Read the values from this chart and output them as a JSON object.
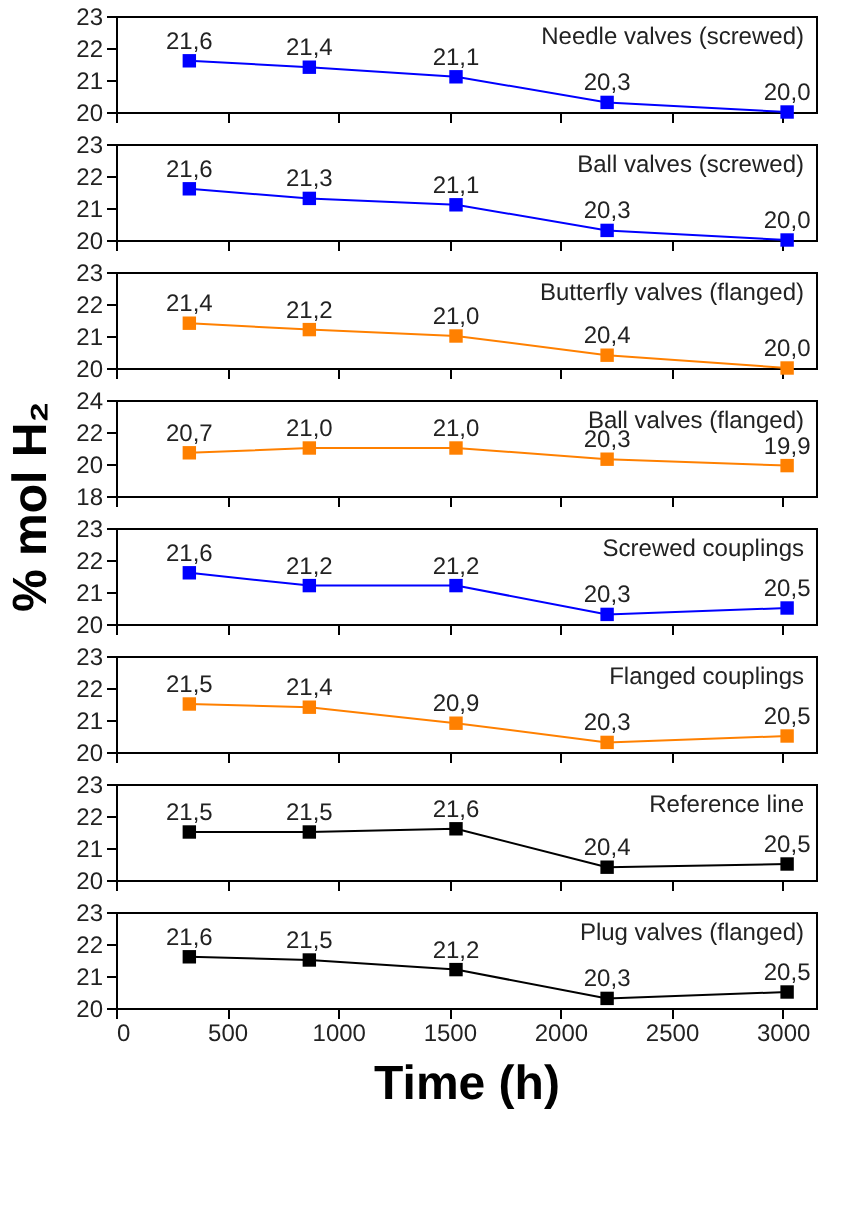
{
  "chart_data": [
    {
      "type": "line",
      "x": [
        330,
        870,
        1530,
        2210,
        3020
      ],
      "xlim": [
        0,
        3150
      ],
      "xticks": [
        0,
        500,
        1000,
        1500,
        2000,
        2500,
        3000
      ],
      "ylim": [
        20,
        23
      ],
      "yticks": [
        20,
        21,
        22,
        23
      ],
      "marker": "square",
      "line_style": "solid",
      "tick_labels": "y",
      "series": [
        {
          "name": "Needle valves (screwed)",
          "color": "#0000ff",
          "values": [
            21.6,
            21.4,
            21.1,
            20.3,
            20.0
          ],
          "value_labels": [
            "21,6",
            "21,4",
            "21,1",
            "20,3",
            "20,0"
          ]
        }
      ]
    },
    {
      "type": "line",
      "x": [
        330,
        870,
        1530,
        2210,
        3020
      ],
      "xlim": [
        0,
        3150
      ],
      "xticks": [
        0,
        500,
        1000,
        1500,
        2000,
        2500,
        3000
      ],
      "ylim": [
        20,
        23
      ],
      "yticks": [
        20,
        21,
        22,
        23
      ],
      "marker": "square",
      "line_style": "solid",
      "tick_labels": "y",
      "series": [
        {
          "name": "Ball valves (screwed)",
          "color": "#0000ff",
          "values": [
            21.6,
            21.3,
            21.1,
            20.3,
            20.0
          ],
          "value_labels": [
            "21,6",
            "21,3",
            "21,1",
            "20,3",
            "20,0"
          ]
        }
      ]
    },
    {
      "type": "line",
      "x": [
        330,
        870,
        1530,
        2210,
        3020
      ],
      "xlim": [
        0,
        3150
      ],
      "xticks": [
        0,
        500,
        1000,
        1500,
        2000,
        2500,
        3000
      ],
      "ylim": [
        20,
        23
      ],
      "yticks": [
        20,
        21,
        22,
        23
      ],
      "marker": "square",
      "line_style": "solid",
      "tick_labels": "y",
      "series": [
        {
          "name": "Butterfly valves (flanged)",
          "color": "#ff8000",
          "values": [
            21.4,
            21.2,
            21.0,
            20.4,
            20.0
          ],
          "value_labels": [
            "21,4",
            "21,2",
            "21,0",
            "20,4",
            "20,0"
          ]
        }
      ]
    },
    {
      "type": "line",
      "x": [
        330,
        870,
        1530,
        2210,
        3020
      ],
      "xlim": [
        0,
        3150
      ],
      "xticks": [
        0,
        500,
        1000,
        1500,
        2000,
        2500,
        3000
      ],
      "ylim": [
        18,
        24
      ],
      "yticks": [
        18,
        20,
        22,
        24
      ],
      "marker": "square",
      "line_style": "solid",
      "tick_labels": "y",
      "ylabel": "% mol H₂",
      "series": [
        {
          "name": "Ball valves (flanged)",
          "color": "#ff8000",
          "values": [
            20.7,
            21.0,
            21.0,
            20.3,
            19.9
          ],
          "value_labels": [
            "20,7",
            "21,0",
            "21,0",
            "20,3",
            "19,9"
          ]
        }
      ]
    },
    {
      "type": "line",
      "x": [
        330,
        870,
        1530,
        2210,
        3020
      ],
      "xlim": [
        0,
        3150
      ],
      "xticks": [
        0,
        500,
        1000,
        1500,
        2000,
        2500,
        3000
      ],
      "ylim": [
        20,
        23
      ],
      "yticks": [
        20,
        21,
        22,
        23
      ],
      "marker": "square",
      "line_style": "solid",
      "tick_labels": "y",
      "series": [
        {
          "name": "Screwed couplings",
          "color": "#0000ff",
          "values": [
            21.6,
            21.2,
            21.2,
            20.3,
            20.5
          ],
          "value_labels": [
            "21,6",
            "21,2",
            "21,2",
            "20,3",
            "20,5"
          ]
        }
      ]
    },
    {
      "type": "line",
      "x": [
        330,
        870,
        1530,
        2210,
        3020
      ],
      "xlim": [
        0,
        3150
      ],
      "xticks": [
        0,
        500,
        1000,
        1500,
        2000,
        2500,
        3000
      ],
      "ylim": [
        20,
        23
      ],
      "yticks": [
        20,
        21,
        22,
        23
      ],
      "marker": "square",
      "line_style": "solid",
      "tick_labels": "y",
      "series": [
        {
          "name": "Flanged couplings",
          "color": "#ff8000",
          "values": [
            21.5,
            21.4,
            20.9,
            20.3,
            20.5
          ],
          "value_labels": [
            "21,5",
            "21,4",
            "20,9",
            "20,3",
            "20,5"
          ]
        }
      ]
    },
    {
      "type": "line",
      "x": [
        330,
        870,
        1530,
        2210,
        3020
      ],
      "xlim": [
        0,
        3150
      ],
      "xticks": [
        0,
        500,
        1000,
        1500,
        2000,
        2500,
        3000
      ],
      "ylim": [
        20,
        23
      ],
      "yticks": [
        20,
        21,
        22,
        23
      ],
      "marker": "square",
      "line_style": "solid",
      "tick_labels": "y",
      "series": [
        {
          "name": "Reference line",
          "color": "#000000",
          "values": [
            21.5,
            21.5,
            21.6,
            20.4,
            20.5
          ],
          "value_labels": [
            "21,5",
            "21,5",
            "21,6",
            "20,4",
            "20,5"
          ]
        }
      ]
    },
    {
      "type": "line",
      "x": [
        330,
        870,
        1530,
        2210,
        3020
      ],
      "xlim": [
        0,
        3150
      ],
      "xticks": [
        0,
        500,
        1000,
        1500,
        2000,
        2500,
        3000
      ],
      "ylim": [
        20,
        23
      ],
      "yticks": [
        20,
        21,
        22,
        23
      ],
      "marker": "square",
      "line_style": "solid",
      "xlabel": "Time (h)",
      "series": [
        {
          "name": "Plug valves (flanged)",
          "color": "#000000",
          "values": [
            21.6,
            21.5,
            21.2,
            20.3,
            20.5
          ],
          "value_labels": [
            "21,6",
            "21,5",
            "21,2",
            "20,3",
            "20,5"
          ]
        }
      ]
    }
  ]
}
